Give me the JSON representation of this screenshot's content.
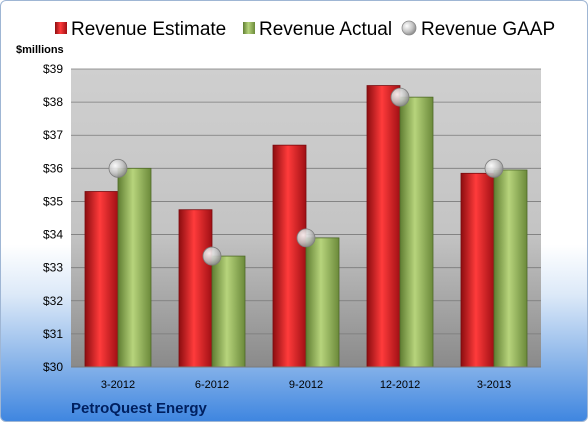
{
  "chart_data": {
    "type": "bar",
    "unit_label": "$millions",
    "company": "PetroQuest Energy",
    "categories": [
      "3-2012",
      "6-2012",
      "9-2012",
      "12-2012",
      "3-2013"
    ],
    "series": [
      {
        "name": "Revenue Estimate",
        "kind": "bar",
        "color": "#e0151e",
        "values": [
          35.3,
          34.75,
          36.7,
          38.5,
          35.85
        ]
      },
      {
        "name": "Revenue Actual",
        "kind": "bar",
        "color": "#8db256",
        "values": [
          36.0,
          33.35,
          33.9,
          38.15,
          35.95
        ]
      },
      {
        "name": "Revenue GAAP",
        "kind": "marker",
        "color": "#c8c8c8",
        "values": [
          36.0,
          33.35,
          33.9,
          38.15,
          36.0
        ]
      }
    ],
    "ylim": [
      30,
      39
    ],
    "yticks": [
      "$30",
      "$31",
      "$32",
      "$33",
      "$34",
      "$35",
      "$36",
      "$37",
      "$38",
      "$39"
    ],
    "grid": true,
    "legend_position": "top"
  }
}
